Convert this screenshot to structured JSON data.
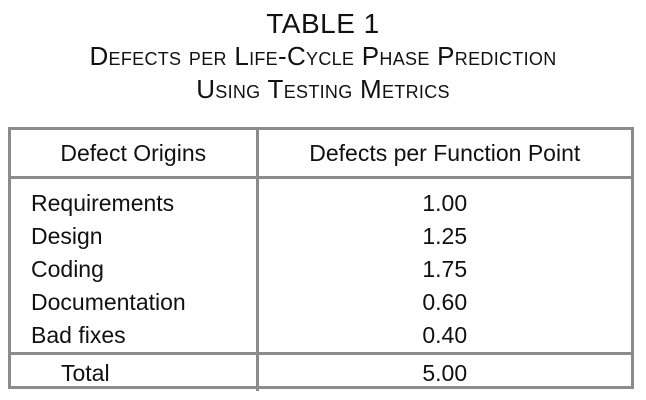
{
  "caption": {
    "label": "TABLE 1",
    "title_line1": "Defects per Life-Cycle Phase Prediction",
    "title_line2": "Using Testing Metrics"
  },
  "table": {
    "headers": [
      "Defect Origins",
      "Defects per Function Point"
    ],
    "rows": [
      {
        "origin": "Requirements",
        "value": "1.00"
      },
      {
        "origin": "Design",
        "value": "1.25"
      },
      {
        "origin": "Coding",
        "value": "1.75"
      },
      {
        "origin": "Documentation",
        "value": "0.60"
      },
      {
        "origin": "Bad fixes",
        "value": "0.40"
      }
    ],
    "total": {
      "label": "Total",
      "value": "5.00"
    }
  },
  "colors": {
    "border": "#8c8c8c",
    "text": "#111111",
    "background": "#ffffff"
  }
}
